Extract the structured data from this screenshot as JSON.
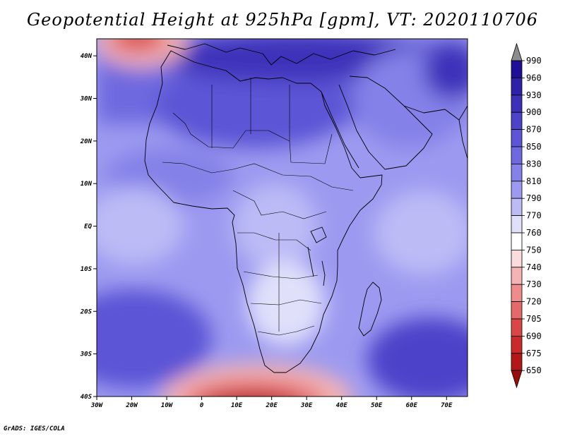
{
  "title": "Geopotential Height at 925hPa [gpm], VT: 2020110706",
  "credit": "GrADS: IGES/COLA",
  "map": {
    "lat_labels": [
      "40N",
      "30N",
      "20N",
      "10N",
      "EQ",
      "10S",
      "20S",
      "30S",
      "40S"
    ],
    "lon_labels": [
      "30W",
      "20W",
      "10W",
      "0",
      "10E",
      "20E",
      "30E",
      "40E",
      "50E",
      "60E",
      "70E"
    ],
    "lon_range": [
      "-30",
      "76"
    ],
    "lat_range": [
      "-40",
      "44"
    ],
    "land_border_color": "#000000"
  },
  "colorbar": {
    "levels": [
      "990",
      "960",
      "930",
      "900",
      "870",
      "850",
      "830",
      "810",
      "790",
      "770",
      "760",
      "750",
      "740",
      "730",
      "720",
      "705",
      "690",
      "675",
      "650"
    ],
    "colors": [
      "#8c8c8c",
      "#1f0f96",
      "#2d22a8",
      "#3c30b9",
      "#4c43c9",
      "#5c55d5",
      "#6e69df",
      "#8481e8",
      "#9c9af0",
      "#bcbbf6",
      "#e0e0fb",
      "#ffffff",
      "#fbdcdc",
      "#f5b4b4",
      "#ee8c8c",
      "#e46a6a",
      "#d84646",
      "#c92b2b",
      "#b21818",
      "#9a0c0c"
    ]
  }
}
